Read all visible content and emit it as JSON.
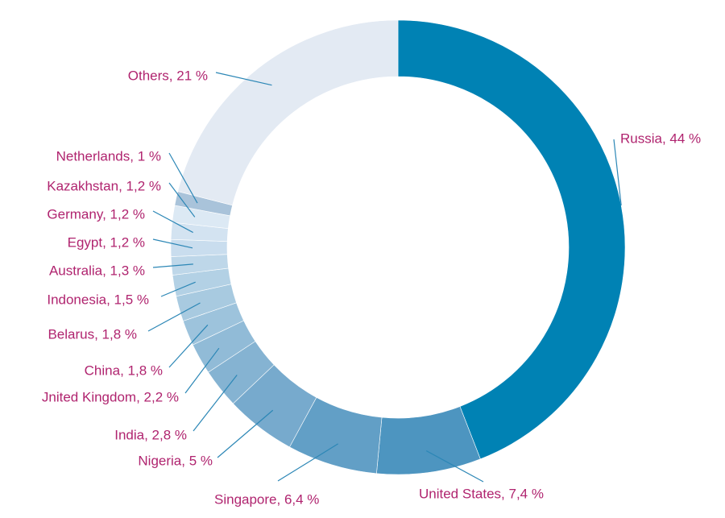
{
  "chart_data": {
    "type": "pie",
    "variant": "donut",
    "title": "",
    "slices": [
      {
        "label": "Russia, 44 %",
        "value": 44,
        "color": "#0082b4"
      },
      {
        "label": "United States, 7,4 %",
        "value": 7.4,
        "color": "#4d95c0"
      },
      {
        "label": "Singapore, 6,4 %",
        "value": 6.4,
        "color": "#629fc6"
      },
      {
        "label": "Nigeria, 5 %",
        "value": 5,
        "color": "#77aacd"
      },
      {
        "label": "India, 2,8 %",
        "value": 2.8,
        "color": "#85b3d2"
      },
      {
        "label": "Jnited Kingdom, 2,2 %",
        "value": 2.2,
        "color": "#91bbd7"
      },
      {
        "label": "China, 1,8 %",
        "value": 1.8,
        "color": "#9dc3dc"
      },
      {
        "label": "Belarus, 1,8 %",
        "value": 1.8,
        "color": "#a8cae0"
      },
      {
        "label": "Indonesia, 1,5 %",
        "value": 1.5,
        "color": "#b3d1e5"
      },
      {
        "label": "Australia, 1,3 %",
        "value": 1.3,
        "color": "#bed7e9"
      },
      {
        "label": "Egypt, 1,2 %",
        "value": 1.2,
        "color": "#c9ddee"
      },
      {
        "label": "Germany, 1,2 %",
        "value": 1.2,
        "color": "#d3e3f1"
      },
      {
        "label": "Kazakhstan, 1,2 %",
        "value": 1.2,
        "color": "#dce9f4"
      },
      {
        "label": "Netherlands, 1 %",
        "value": 1,
        "color": "#a9c3da"
      },
      {
        "label": "Others, 21 %",
        "value": 21,
        "color": "#e3eaf3"
      }
    ]
  }
}
